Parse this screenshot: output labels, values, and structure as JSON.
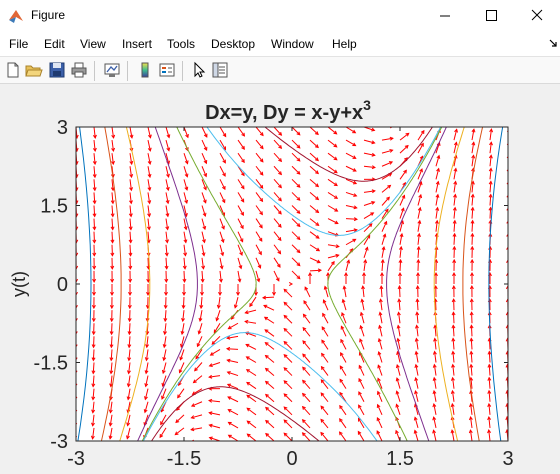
{
  "window": {
    "title": "Figure",
    "controls": [
      "minimize",
      "maximize",
      "close"
    ]
  },
  "menu": {
    "items": [
      "File",
      "Edit",
      "View",
      "Insert",
      "Tools",
      "Desktop",
      "Window",
      "Help"
    ]
  },
  "toolbar": {
    "icons": [
      "new-figure-icon",
      "open-file-icon",
      "save-icon",
      "print-icon",
      "link-plot-icon",
      "insert-colorbar-icon",
      "insert-legend-icon",
      "edit-plot-icon",
      "property-inspector-icon"
    ]
  },
  "colors": {
    "arrows": "#ff0000",
    "trajectories": [
      "#0072bd",
      "#d95319",
      "#edb120",
      "#7e2f8e",
      "#77ac30",
      "#4dbeee",
      "#a2142f"
    ],
    "axes_bg": "#ffffff"
  },
  "chart_data": {
    "type": "vector-field",
    "title_main": "Dx=y, Dy = x-y+x",
    "title_sup": "3",
    "xlabel": "",
    "ylabel": "y(t)",
    "xlim": [
      -3,
      3
    ],
    "ylim": [
      -3,
      3
    ],
    "xticks": [
      "-3",
      "-1.5",
      "0",
      "1.5",
      "3"
    ],
    "yticks": [
      "3",
      "1.5",
      "0",
      "-1.5",
      "-3"
    ],
    "xtick_values": [
      -3,
      -1.5,
      0,
      1.5,
      3
    ],
    "ytick_values": [
      3,
      1.5,
      0,
      -1.5,
      -3
    ],
    "field": {
      "dx": "y",
      "dy": "x - y + x^3",
      "grid_n": 25
    },
    "trajectories": [
      {
        "x0": -2.95,
        "y0": 3.0
      },
      {
        "x0": -2.6,
        "y0": 3.0
      },
      {
        "x0": -2.3,
        "y0": 3.0
      },
      {
        "x0": -1.9,
        "y0": 3.0
      },
      {
        "x0": -1.6,
        "y0": 3.0
      },
      {
        "x0": 0.4,
        "y0": 1.0
      },
      {
        "x0": 0.0,
        "y0": 2.6
      },
      {
        "x0": 2.9,
        "y0": -3.0
      },
      {
        "x0": 2.6,
        "y0": -3.0
      },
      {
        "x0": 2.3,
        "y0": -3.0
      },
      {
        "x0": 1.9,
        "y0": -3.0
      },
      {
        "x0": 1.6,
        "y0": -3.0
      },
      {
        "x0": -0.4,
        "y0": -1.0
      },
      {
        "x0": 0.0,
        "y0": -2.6
      }
    ]
  }
}
